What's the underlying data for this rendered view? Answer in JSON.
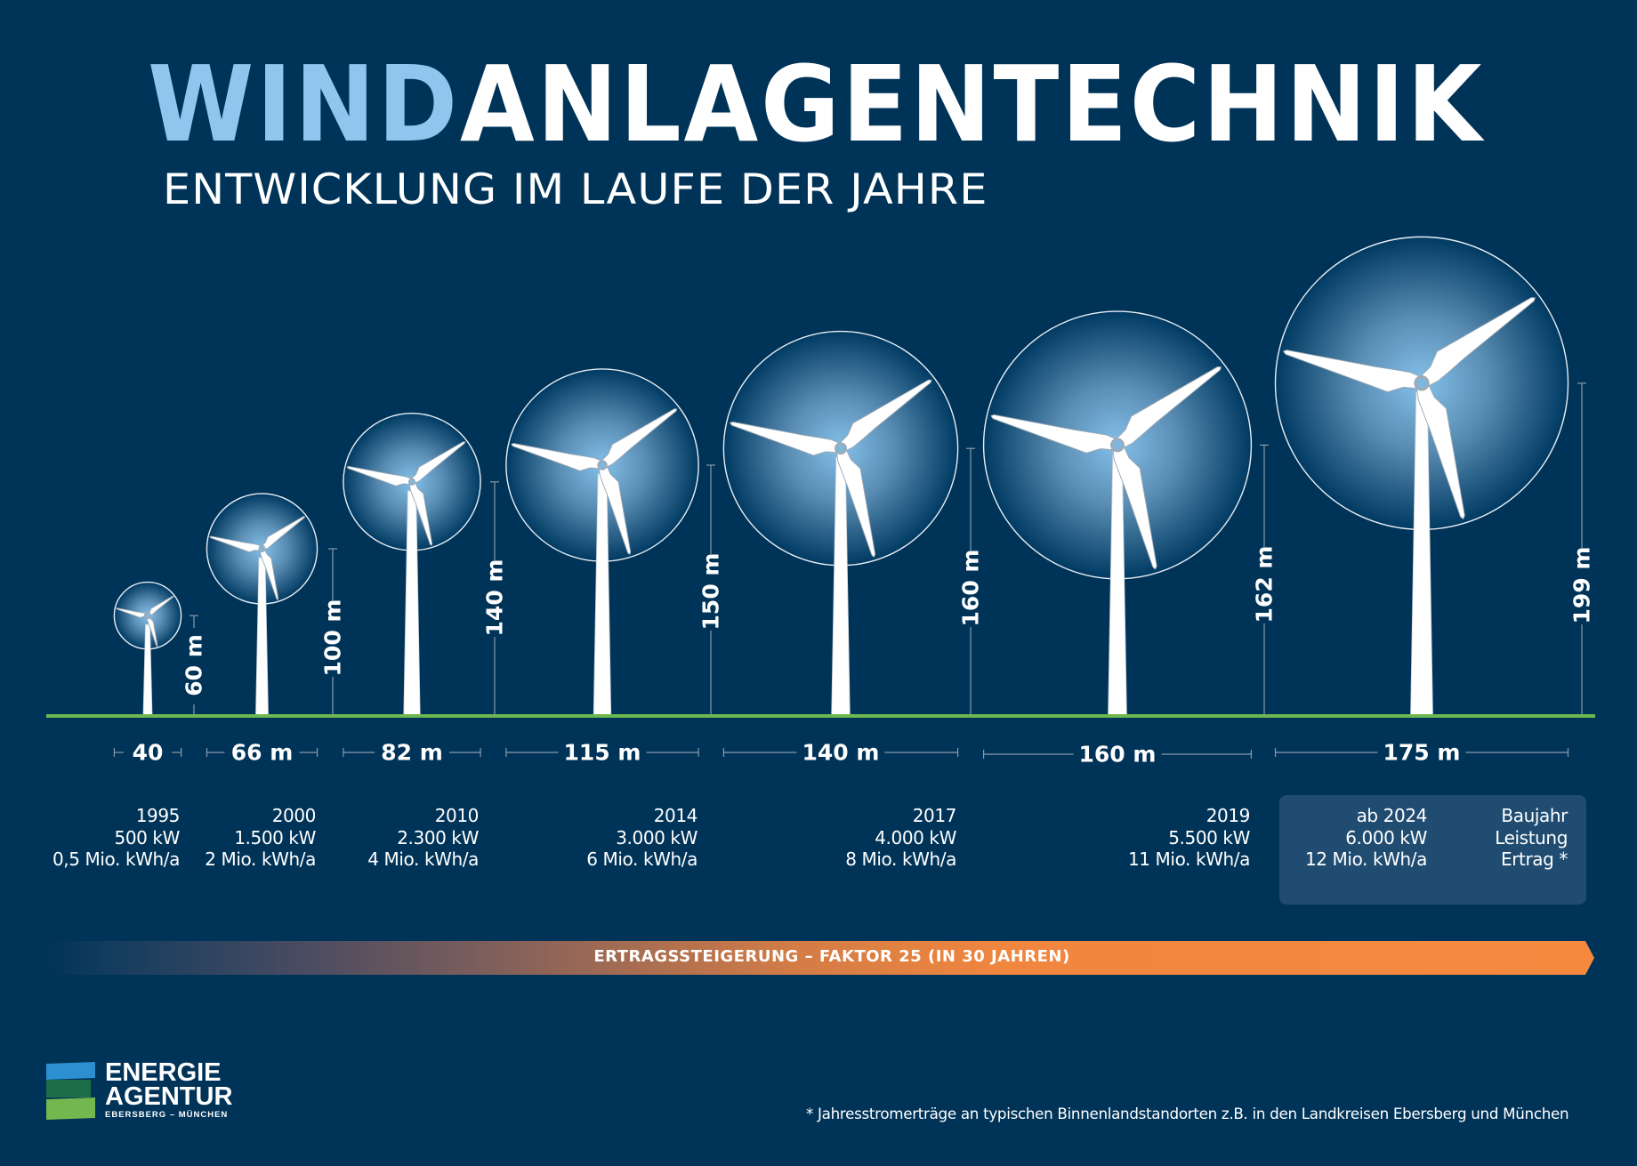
{
  "header": {
    "title_highlight": "WIND",
    "title_rest": "ANLAGENTECHNIK",
    "subtitle": "ENTWICKLUNG IM LAUFE DER JAHRE"
  },
  "colors": {
    "background": "#003358",
    "title_highlight": "#92C5EE",
    "ground": "#6CB84E",
    "trend_orange": "#F58A3F",
    "highlight_box": "#1F4C70",
    "dimension_line": "#8A9BAA"
  },
  "turbines": [
    {
      "year": "1995",
      "power": "500 kW",
      "yield": "0,5 Mio. kWh/a",
      "hub_height_m": 60,
      "hub_height_label": "60 m",
      "rotor_diameter_m": 40,
      "rotor_label": "40"
    },
    {
      "year": "2000",
      "power": "1.500 kW",
      "yield": "2 Mio. kWh/a",
      "hub_height_m": 100,
      "hub_height_label": "100 m",
      "rotor_diameter_m": 66,
      "rotor_label": "66 m"
    },
    {
      "year": "2010",
      "power": "2.300 kW",
      "yield": "4 Mio. kWh/a",
      "hub_height_m": 140,
      "hub_height_label": "140 m",
      "rotor_diameter_m": 82,
      "rotor_label": "82 m"
    },
    {
      "year": "2014",
      "power": "3.000 kW",
      "yield": "6 Mio. kWh/a",
      "hub_height_m": 150,
      "hub_height_label": "150 m",
      "rotor_diameter_m": 115,
      "rotor_label": "115 m"
    },
    {
      "year": "2017",
      "power": "4.000 kW",
      "yield": "8 Mio. kWh/a",
      "hub_height_m": 160,
      "hub_height_label": "160 m",
      "rotor_diameter_m": 140,
      "rotor_label": "140 m"
    },
    {
      "year": "2019",
      "power": "5.500 kW",
      "yield": "11 Mio. kWh/a",
      "hub_height_m": 162,
      "hub_height_label": "162 m",
      "rotor_diameter_m": 160,
      "rotor_label": "160 m"
    },
    {
      "year": "ab 2024",
      "power": "6.000 kW",
      "yield": "12 Mio. kWh/a",
      "hub_height_m": 199,
      "hub_height_label": "199 m",
      "rotor_diameter_m": 175,
      "rotor_label": "175 m"
    }
  ],
  "legend": {
    "year": "Baujahr",
    "power": "Leistung",
    "yield": "Ertrag *"
  },
  "trend": {
    "label": "ERTRAGSSTEIGERUNG – FAKTOR 25 (IN 30 JAHREN)"
  },
  "logo": {
    "line1": "ENERGIE",
    "line2": "AGENTUR",
    "line3": "EBERSBERG – MÜNCHEN"
  },
  "footnote": "* Jahresstromerträge an typischen Binnenlandstandorten z.B. in den Landkreisen Ebersberg und München"
}
